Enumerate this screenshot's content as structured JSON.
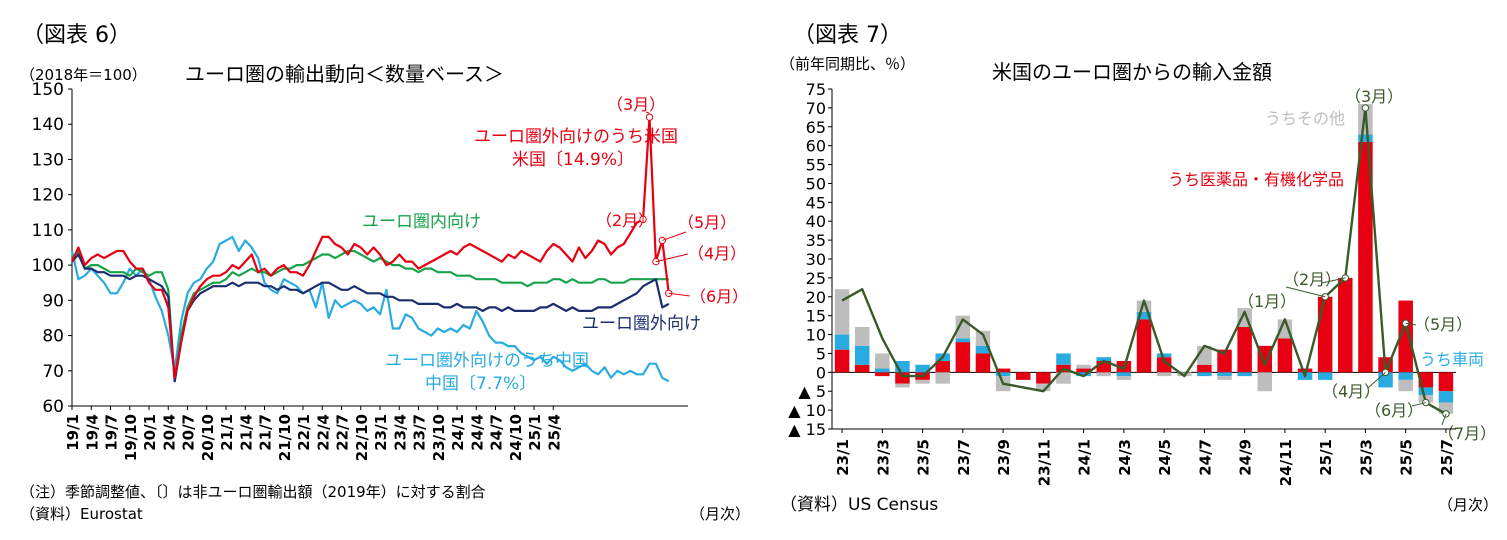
{
  "chart_data": [
    {
      "type": "line",
      "fig_label": "（図表 6）",
      "title": "ユーロ圏の輸出動向＜数量ベース＞",
      "ylabel": "（2018年＝100）",
      "xlabel": "（月次）",
      "ylim": [
        60,
        150
      ],
      "yticks": [
        60,
        70,
        80,
        90,
        100,
        110,
        120,
        130,
        140,
        150
      ],
      "xtick_labels": [
        "19/1",
        "19/4",
        "19/7",
        "19/10",
        "20/1",
        "20/4",
        "20/7",
        "20/10",
        "21/1",
        "21/4",
        "21/7",
        "21/10",
        "22/1",
        "22/4",
        "22/7",
        "22/10",
        "23/1",
        "23/4",
        "23/7",
        "23/10",
        "24/1",
        "24/4",
        "24/7",
        "24/10",
        "25/1",
        "25/4"
      ],
      "xtick_months": [
        0,
        3,
        6,
        9,
        12,
        15,
        18,
        21,
        24,
        27,
        30,
        33,
        36,
        39,
        42,
        45,
        48,
        51,
        54,
        57,
        60,
        63,
        66,
        69,
        72,
        75
      ],
      "note": "（注）季節調整値、〔〕は非ユーロ圏輸出額（2019年）に対する割合",
      "source": "（資料）Eurostat",
      "series": [
        {
          "name": "ユーロ圏外向けのうち米国",
          "name2": "米国〔14.9%〕",
          "color": "#e60012",
          "values": [
            101,
            105,
            100,
            102,
            103,
            102,
            103,
            104,
            104,
            101,
            99,
            99,
            95,
            93,
            93,
            88,
            68,
            78,
            87,
            91,
            94,
            96,
            97,
            97,
            98,
            100,
            99,
            101,
            103,
            98,
            99,
            97,
            99,
            100,
            98,
            98,
            97,
            100,
            104,
            108,
            108,
            106,
            105,
            103,
            106,
            105,
            103,
            105,
            103,
            100,
            101,
            103,
            101,
            101,
            99,
            100,
            101,
            102,
            103,
            104,
            103,
            105,
            106,
            105,
            104,
            103,
            102,
            101,
            103,
            102,
            104,
            103,
            102,
            101,
            104,
            106,
            105,
            103,
            101,
            105,
            102,
            104,
            107,
            106,
            103,
            105,
            106,
            109,
            112,
            113,
            142,
            101,
            107,
            92
          ]
        },
        {
          "name": "ユーロ圏内向け",
          "color": "#17a34a",
          "values": [
            102,
            104,
            99,
            100,
            100,
            99,
            98,
            98,
            98,
            97,
            99,
            98,
            97,
            98,
            98,
            93,
            67,
            80,
            88,
            92,
            93,
            94,
            95,
            95,
            96,
            98,
            97,
            98,
            99,
            98,
            98,
            97,
            98,
            99,
            99,
            100,
            100,
            101,
            102,
            103,
            103,
            102,
            103,
            104,
            104,
            103,
            102,
            101,
            102,
            101,
            100,
            100,
            99,
            99,
            98,
            99,
            99,
            98,
            98,
            98,
            97,
            97,
            97,
            96,
            96,
            96,
            96,
            95,
            95,
            95,
            95,
            94,
            95,
            95,
            95,
            96,
            96,
            95,
            96,
            95,
            95,
            95,
            96,
            96,
            95,
            95,
            95,
            96,
            96,
            96,
            96,
            96,
            96,
            96
          ]
        },
        {
          "name": "ユーロ圏外向け",
          "color": "#1a2e6e",
          "values": [
            101,
            103,
            99,
            99,
            98,
            98,
            97,
            97,
            97,
            96,
            97,
            97,
            96,
            95,
            94,
            91,
            67,
            78,
            87,
            90,
            92,
            93,
            94,
            94,
            94,
            95,
            94,
            95,
            95,
            95,
            94,
            94,
            93,
            94,
            93,
            93,
            92,
            93,
            94,
            95,
            95,
            94,
            93,
            93,
            94,
            93,
            92,
            92,
            92,
            91,
            91,
            90,
            90,
            90,
            89,
            89,
            89,
            89,
            88,
            88,
            89,
            88,
            88,
            88,
            87,
            88,
            88,
            87,
            88,
            87,
            87,
            87,
            87,
            88,
            88,
            89,
            88,
            87,
            88,
            87,
            87,
            87,
            88,
            88,
            88,
            89,
            90,
            91,
            92,
            94,
            95,
            96,
            88,
            89
          ]
        },
        {
          "name": "ユーロ圏外向けのうち中国",
          "name2": "中国〔7.7%〕",
          "color": "#29abe2",
          "values": [
            104,
            96,
            97,
            99,
            97,
            95,
            92,
            92,
            95,
            99,
            97,
            99,
            96,
            91,
            87,
            80,
            70,
            84,
            92,
            95,
            96,
            99,
            101,
            106,
            107,
            108,
            104,
            107,
            105,
            102,
            95,
            93,
            92,
            96,
            95,
            94,
            92,
            93,
            88,
            95,
            85,
            90,
            88,
            89,
            90,
            89,
            87,
            88,
            86,
            93,
            82,
            82,
            86,
            85,
            82,
            81,
            80,
            82,
            81,
            82,
            81,
            83,
            82,
            87,
            84,
            80,
            78,
            78,
            77,
            77,
            75,
            74,
            73,
            74,
            72,
            74,
            73,
            71,
            70,
            71,
            72,
            70,
            69,
            71,
            68,
            70,
            69,
            70,
            69,
            69,
            72,
            72,
            68,
            67
          ]
        }
      ],
      "annotations": [
        "（3月）",
        "（2月）",
        "（5月）",
        "（4月）",
        "（6月）"
      ]
    },
    {
      "type": "bar",
      "fig_label": "（図表 7）",
      "title": "米国のユーロ圏からの輸入金額",
      "ylabel": "（前年同期比、％）",
      "xlabel": "（月次）",
      "source": "（資料）US Census",
      "ylim": [
        -15,
        75
      ],
      "ytick_labels": [
        "▲ 15",
        "▲ 10",
        "▲ 5",
        "0",
        "5",
        "10",
        "15",
        "20",
        "25",
        "30",
        "35",
        "40",
        "45",
        "50",
        "55",
        "60",
        "65",
        "70",
        "75"
      ],
      "ytick_values": [
        -15,
        -10,
        -5,
        0,
        5,
        10,
        15,
        20,
        25,
        30,
        35,
        40,
        45,
        50,
        55,
        60,
        65,
        70,
        75
      ],
      "categories": [
        "23/1",
        "23/2",
        "23/3",
        "23/4",
        "23/5",
        "23/6",
        "23/7",
        "23/8",
        "23/9",
        "23/10",
        "23/11",
        "23/12",
        "24/1",
        "24/2",
        "24/3",
        "24/4",
        "24/5",
        "24/6",
        "24/7",
        "24/8",
        "24/9",
        "24/10",
        "24/11",
        "24/12",
        "25/1",
        "25/2",
        "25/3",
        "25/4",
        "25/5",
        "25/6",
        "25/7"
      ],
      "xtick_labels": [
        "23/1",
        "23/3",
        "23/5",
        "23/7",
        "23/9",
        "23/11",
        "24/1",
        "24/3",
        "24/5",
        "24/7",
        "24/9",
        "24/11",
        "25/1",
        "25/3",
        "25/5",
        "25/7"
      ],
      "series": [
        {
          "name": "うち医薬品・有機化学品",
          "color": "#e60012",
          "values": [
            6,
            2,
            -1,
            -3,
            -2,
            3,
            8,
            5,
            1,
            -2,
            -3,
            2,
            1,
            3,
            3,
            14,
            4,
            0,
            2,
            6,
            12,
            7,
            9,
            1,
            20,
            25,
            61,
            4,
            19,
            -4,
            -5
          ]
        },
        {
          "name": "うち車両",
          "color": "#29abe2",
          "values": [
            4,
            5,
            1,
            3,
            2,
            2,
            1,
            2,
            -1,
            0,
            0,
            3,
            -1,
            1,
            -1,
            2,
            1,
            0,
            -1,
            -1,
            -1,
            0,
            0,
            -2,
            -2,
            0,
            2,
            -4,
            -2,
            -2,
            -3
          ]
        },
        {
          "name": "うちその他",
          "color": "#bdbdbd",
          "values": [
            12,
            5,
            4,
            -1,
            -1,
            -3,
            6,
            4,
            -4,
            0,
            -2,
            -3,
            1,
            -1,
            -1,
            3,
            -1,
            -1,
            5,
            -1,
            5,
            -5,
            5,
            0,
            0,
            0,
            8,
            0,
            -3,
            -2,
            -3
          ]
        },
        {
          "name": "total",
          "color": "#3a5a28",
          "values": [
            19,
            22,
            9,
            -1,
            -1,
            4,
            14,
            10,
            -3,
            -4,
            -5,
            1,
            -1,
            3,
            1,
            19,
            3,
            -1,
            7,
            5,
            16,
            2,
            14,
            -1,
            20,
            25,
            70,
            0,
            13,
            -8,
            -11
          ]
        }
      ],
      "annotations": [
        "（3月）",
        "（2月）",
        "（1月）",
        "（4月）",
        "（5月）",
        "（6月）",
        "（7月）"
      ]
    }
  ]
}
